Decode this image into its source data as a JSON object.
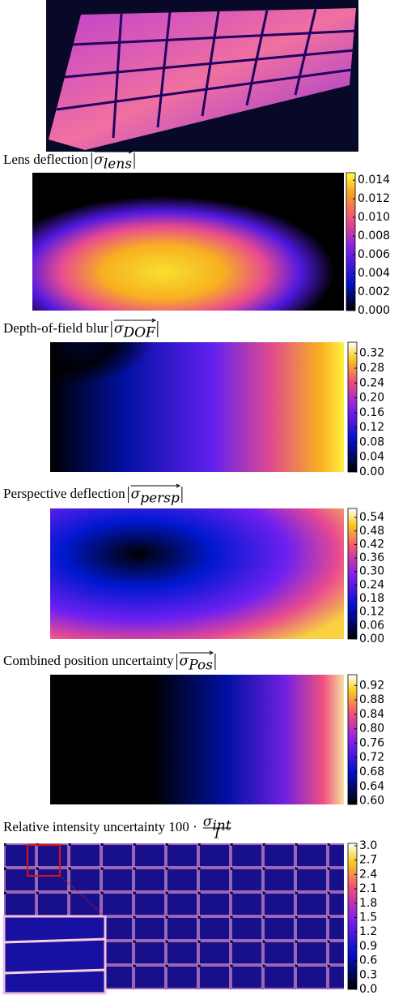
{
  "figure": {
    "panels": [
      {
        "caption": {
          "text": "Lens deflection",
          "symbol": "σ",
          "sub": "lens"
        },
        "colorbar": {
          "lim": [
            0,
            0.0148
          ],
          "ticks": [
            {
              "value": 0,
              "label": "0.000"
            },
            0.002,
            0.004,
            0.006,
            0.008,
            {
              "value": 0.01,
              "label": "0.010"
            },
            0.012,
            0.014
          ]
        }
      },
      {
        "caption": {
          "text": "Depth-of-field blur",
          "symbol": "σ",
          "sub": "DOF"
        },
        "colorbar": {
          "lim": [
            0,
            0.35
          ],
          "ticks": [
            {
              "value": 0,
              "label": "0.00"
            },
            0.04,
            0.08,
            0.12,
            0.16,
            {
              "value": 0.2,
              "label": "0.20"
            },
            0.24,
            0.28,
            0.32
          ]
        }
      },
      {
        "caption": {
          "text": "Perspective deflection",
          "symbol": "σ",
          "sub": "persp"
        },
        "colorbar": {
          "lim": [
            0,
            0.58
          ],
          "ticks": [
            {
              "value": 0,
              "label": "0.00"
            },
            0.06,
            0.12,
            0.18,
            0.24,
            {
              "value": 0.3,
              "label": "0.30"
            },
            0.36,
            0.42,
            0.48,
            0.54
          ]
        }
      },
      {
        "caption": {
          "text": "Combined position uncertainty",
          "symbol": "σ",
          "sub": "Pos"
        },
        "colorbar": {
          "lim": [
            0.59,
            0.95
          ],
          "ticks": [
            {
              "value": 0.6,
              "label": "0.60"
            },
            0.64,
            0.68,
            0.72,
            0.76,
            {
              "value": 0.8,
              "label": "0.80"
            },
            0.84,
            0.88,
            0.92
          ]
        }
      },
      {
        "caption": {
          "text": "Relative intensity uncertainty 100 ·",
          "symbol": "σ",
          "sub": "int",
          "denominator": "I"
        },
        "colorbar": {
          "lim": [
            0,
            3.05
          ],
          "ticks": [
            {
              "value": 0,
              "label": "0.0"
            },
            0.3,
            0.6,
            0.9,
            1.2,
            1.5,
            1.8,
            2.1,
            2.4,
            2.7,
            {
              "value": 3,
              "label": "3.0"
            }
          ]
        }
      }
    ]
  }
}
